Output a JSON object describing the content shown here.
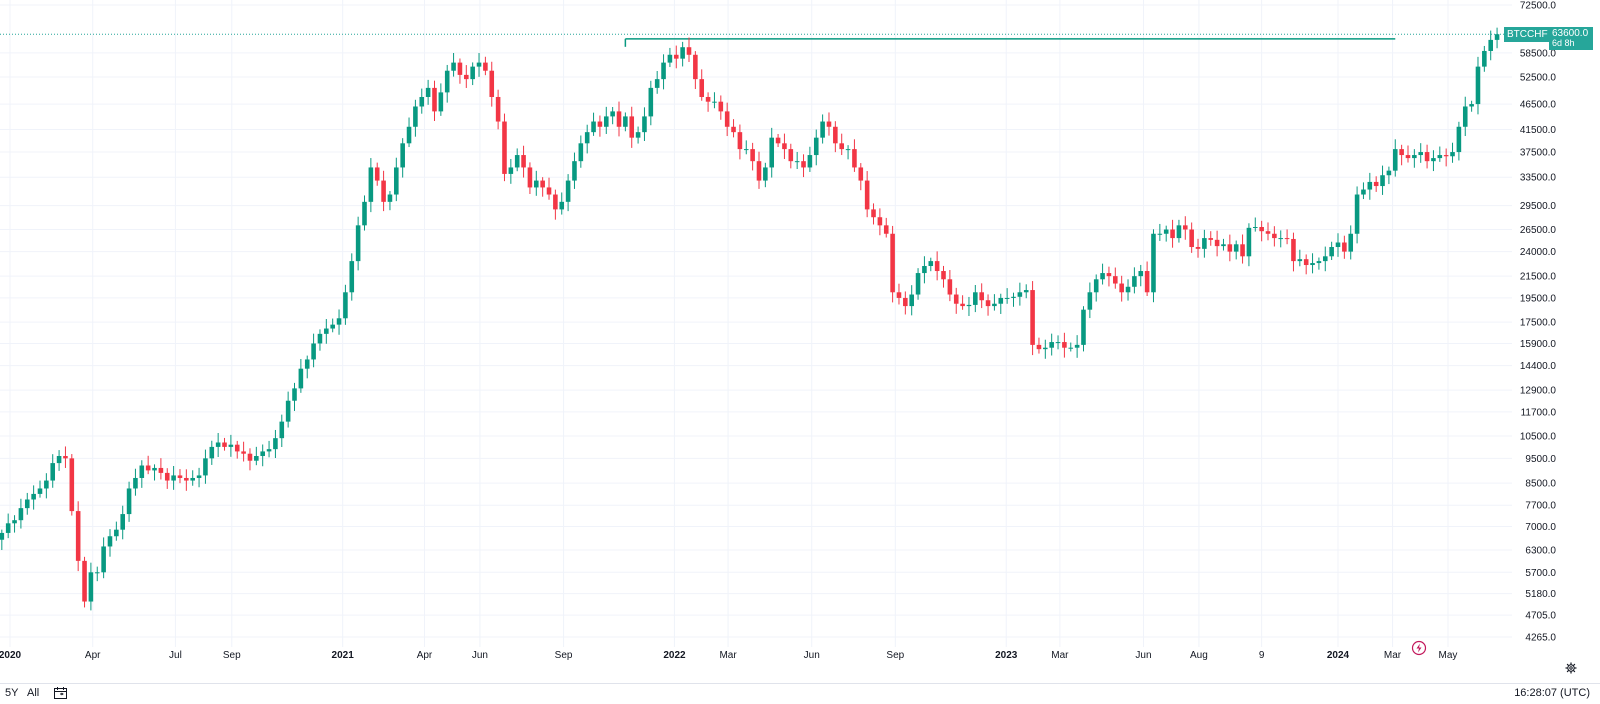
{
  "chart_data": {
    "type": "candlestick",
    "symbol": "BTCCHF",
    "interval": "weekly",
    "y_scale": "log",
    "ylim": [
      3900,
      72500
    ],
    "grid": true,
    "current_price": "63600.0",
    "countdown": "6d 8h",
    "y_ticks": [
      72500,
      58500,
      52500,
      46500,
      41500,
      37500,
      33500,
      29500,
      26500,
      24000,
      21500,
      19500,
      17500,
      15900,
      14400,
      12900,
      11700,
      10500,
      9500,
      8500,
      7700,
      7000,
      6300,
      5700,
      5180,
      4705,
      4265
    ],
    "y_tick_labels": [
      "72500.0",
      "58500.0",
      "52500.0",
      "46500.0",
      "41500.0",
      "37500.0",
      "33500.0",
      "29500.0",
      "26500.0",
      "24000.0",
      "21500.0",
      "19500.0",
      "17500.0",
      "15900.0",
      "14400.0",
      "12900.0",
      "11700.0",
      "10500.0",
      "9500.0",
      "8500.0",
      "7700.0",
      "7000.0",
      "6300.0",
      "5700.0",
      "5180.0",
      "4705.0",
      "4265.0"
    ],
    "x_ticks": [
      {
        "label": "2020",
        "date": "2020-01-01",
        "bold": true
      },
      {
        "label": "Apr",
        "date": "2020-04-01",
        "bold": false
      },
      {
        "label": "Jul",
        "date": "2020-07-01",
        "bold": false
      },
      {
        "label": "Sep",
        "date": "2020-09-01",
        "bold": false
      },
      {
        "label": "2021",
        "date": "2021-01-01",
        "bold": true
      },
      {
        "label": "Apr",
        "date": "2021-04-01",
        "bold": false
      },
      {
        "label": "Jun",
        "date": "2021-06-01",
        "bold": false
      },
      {
        "label": "Sep",
        "date": "2021-09-01",
        "bold": false
      },
      {
        "label": "2022",
        "date": "2022-01-01",
        "bold": true
      },
      {
        "label": "Mar",
        "date": "2022-03-01",
        "bold": false
      },
      {
        "label": "Jun",
        "date": "2022-06-01",
        "bold": false
      },
      {
        "label": "Sep",
        "date": "2022-09-01",
        "bold": false
      },
      {
        "label": "2023",
        "date": "2023-01-01",
        "bold": true
      },
      {
        "label": "Mar",
        "date": "2023-03-01",
        "bold": false
      },
      {
        "label": "Jun",
        "date": "2023-06-01",
        "bold": false
      },
      {
        "label": "Aug",
        "date": "2023-08-01",
        "bold": false
      },
      {
        "label": "9",
        "date": "2023-10-09",
        "bold": false
      },
      {
        "label": "2024",
        "date": "2024-01-01",
        "bold": true
      },
      {
        "label": "Mar",
        "date": "2024-03-01",
        "bold": false
      },
      {
        "label": "May",
        "date": "2024-05-01",
        "bold": false
      }
    ],
    "horizontal_line": {
      "from": "2021-11-08",
      "to": "2024-03-04",
      "value": 62300,
      "color": "#089981"
    },
    "start_date": "2019-12-23",
    "closes": [
      6800,
      7100,
      7200,
      7600,
      7900,
      8100,
      8300,
      8600,
      9300,
      9600,
      9500,
      7500,
      6000,
      5000,
      5700,
      5700,
      6400,
      6700,
      6900,
      7400,
      8300,
      8700,
      9200,
      9000,
      9100,
      8900,
      8600,
      8800,
      8700,
      8600,
      8700,
      8800,
      9500,
      10000,
      10200,
      10000,
      10100,
      9800,
      9700,
      9400,
      9600,
      9800,
      9900,
      10400,
      11200,
      12300,
      13000,
      14200,
      14800,
      15900,
      16600,
      17000,
      17300,
      17800,
      20000,
      23000,
      27000,
      30000,
      35000,
      33000,
      30000,
      31000,
      35000,
      39000,
      42000,
      46000,
      48000,
      50000,
      45000,
      49000,
      54000,
      56000,
      53000,
      52000,
      55000,
      56000,
      54000,
      48000,
      43000,
      34000,
      35000,
      37000,
      35000,
      32000,
      33000,
      32000,
      31000,
      29000,
      30000,
      33000,
      36000,
      39000,
      41000,
      43000,
      42000,
      44000,
      45000,
      42000,
      44000,
      40000,
      41000,
      44000,
      50000,
      52000,
      56000,
      58000,
      57000,
      60000,
      58000,
      52000,
      48000,
      47000,
      47000,
      45000,
      42000,
      41000,
      38000,
      38000,
      36000,
      33000,
      35000,
      40000,
      39000,
      38000,
      36000,
      36000,
      35000,
      37000,
      40000,
      43000,
      42000,
      39000,
      38000,
      38000,
      35000,
      33000,
      29000,
      28000,
      27000,
      26000,
      20000,
      19500,
      18800,
      19800,
      21800,
      22500,
      23000,
      22000,
      21200,
      19800,
      19000,
      18800,
      18900,
      20000,
      19300,
      18800,
      19000,
      19500,
      19500,
      19600,
      20000,
      20200,
      15800,
      15500,
      15600,
      16000,
      16000,
      15600,
      15600,
      15800,
      18500,
      20000,
      21200,
      21800,
      21500,
      20800,
      20000,
      20500,
      21500,
      22000,
      20000,
      26000,
      26000,
      26500,
      25500,
      27000,
      26500,
      24500,
      24300,
      25500,
      25300,
      24600,
      24800,
      24000,
      24800,
      23500,
      26700,
      26800,
      26300,
      26000,
      25500,
      25500,
      25400,
      23000,
      23200,
      22600,
      22800,
      23000,
      23500,
      24500,
      25000,
      24000,
      26000,
      31000,
      31700,
      32800,
      32200,
      33800,
      34500,
      38000,
      37000,
      36500,
      37000,
      37500,
      36000,
      36500,
      37000,
      36800,
      37500,
      42000,
      46000,
      46500,
      55000,
      59000,
      62000,
      63600
    ]
  },
  "ui": {
    "range_5y": "5Y",
    "range_all": "All",
    "time": "16:28:07 (UTC)"
  },
  "icons": {
    "calendar": "calendar-icon",
    "gear": "gear-icon",
    "flash": "flash-icon"
  },
  "colors": {
    "up": "#089981",
    "down": "#f23645",
    "grid": "#f0f3fa",
    "tag": "#26a69a"
  }
}
